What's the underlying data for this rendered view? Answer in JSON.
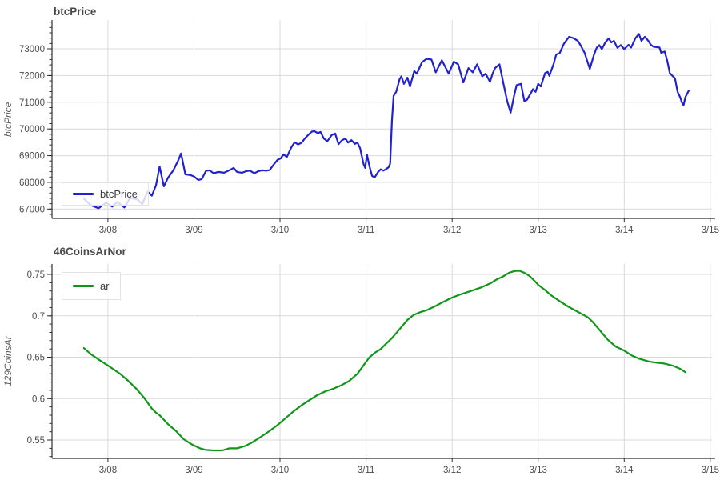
{
  "page": {
    "background": "#ffffff"
  },
  "chart_data": [
    {
      "type": "line",
      "title": "btcPrice",
      "xlabel": "",
      "ylabel": "btcPrice",
      "legend": {
        "label": "btcPrice",
        "position": "bottom-left"
      },
      "color": "#2121cd",
      "grid": true,
      "xlim": [
        7.35,
        15.02
      ],
      "ylim": [
        66650,
        74080
      ],
      "x_tick_values": [
        8,
        9,
        10,
        11,
        12,
        13,
        14,
        15
      ],
      "x_tick_labels": [
        "3/08",
        "3/09",
        "3/10",
        "3/11",
        "3/12",
        "3/13",
        "3/14",
        "3/15"
      ],
      "y_tick_values": [
        67000,
        68000,
        69000,
        70000,
        71000,
        72000,
        73000
      ],
      "y_tick_labels": [
        "67000",
        "68000",
        "69000",
        "70000",
        "71000",
        "72000",
        "73000"
      ],
      "y_minor_step": 200,
      "points": [
        [
          7.72,
          67390
        ],
        [
          7.8,
          67150
        ],
        [
          7.89,
          67030
        ],
        [
          7.98,
          67240
        ],
        [
          8.05,
          67090
        ],
        [
          8.11,
          67270
        ],
        [
          8.19,
          67060
        ],
        [
          8.26,
          67420
        ],
        [
          8.34,
          67360
        ],
        [
          8.4,
          67190
        ],
        [
          8.46,
          67650
        ],
        [
          8.51,
          67500
        ],
        [
          8.56,
          67900
        ],
        [
          8.6,
          68590
        ],
        [
          8.65,
          67850
        ],
        [
          8.7,
          68180
        ],
        [
          8.76,
          68450
        ],
        [
          8.82,
          68840
        ],
        [
          8.85,
          69080
        ],
        [
          8.9,
          68300
        ],
        [
          8.96,
          68270
        ],
        [
          9.0,
          68220
        ],
        [
          9.05,
          68090
        ],
        [
          9.09,
          68120
        ],
        [
          9.14,
          68430
        ],
        [
          9.18,
          68450
        ],
        [
          9.23,
          68340
        ],
        [
          9.28,
          68390
        ],
        [
          9.35,
          68360
        ],
        [
          9.41,
          68450
        ],
        [
          9.46,
          68540
        ],
        [
          9.5,
          68390
        ],
        [
          9.56,
          68360
        ],
        [
          9.61,
          68420
        ],
        [
          9.65,
          68440
        ],
        [
          9.7,
          68340
        ],
        [
          9.75,
          68420
        ],
        [
          9.79,
          68450
        ],
        [
          9.84,
          68440
        ],
        [
          9.88,
          68460
        ],
        [
          9.92,
          68640
        ],
        [
          9.97,
          68840
        ],
        [
          10.01,
          68900
        ],
        [
          10.04,
          69050
        ],
        [
          10.08,
          68950
        ],
        [
          10.13,
          69300
        ],
        [
          10.17,
          69500
        ],
        [
          10.21,
          69420
        ],
        [
          10.25,
          69480
        ],
        [
          10.29,
          69650
        ],
        [
          10.33,
          69780
        ],
        [
          10.37,
          69900
        ],
        [
          10.4,
          69920
        ],
        [
          10.44,
          69840
        ],
        [
          10.47,
          69890
        ],
        [
          10.51,
          69640
        ],
        [
          10.55,
          69540
        ],
        [
          10.6,
          69770
        ],
        [
          10.64,
          69830
        ],
        [
          10.68,
          69430
        ],
        [
          10.72,
          69580
        ],
        [
          10.76,
          69640
        ],
        [
          10.79,
          69490
        ],
        [
          10.83,
          69580
        ],
        [
          10.87,
          69440
        ],
        [
          10.9,
          69490
        ],
        [
          10.93,
          69280
        ],
        [
          10.97,
          68690
        ],
        [
          10.99,
          68540
        ],
        [
          11.01,
          69040
        ],
        [
          11.04,
          68590
        ],
        [
          11.07,
          68240
        ],
        [
          11.1,
          68190
        ],
        [
          11.14,
          68390
        ],
        [
          11.17,
          68490
        ],
        [
          11.2,
          68440
        ],
        [
          11.23,
          68490
        ],
        [
          11.26,
          68560
        ],
        [
          11.28,
          68700
        ],
        [
          11.3,
          70300
        ],
        [
          11.32,
          71240
        ],
        [
          11.35,
          71390
        ],
        [
          11.39,
          71870
        ],
        [
          11.41,
          71970
        ],
        [
          11.44,
          71690
        ],
        [
          11.48,
          71920
        ],
        [
          11.51,
          71590
        ],
        [
          11.56,
          72170
        ],
        [
          11.59,
          72070
        ],
        [
          11.65,
          72500
        ],
        [
          11.7,
          72620
        ],
        [
          11.76,
          72600
        ],
        [
          11.81,
          72120
        ],
        [
          11.88,
          72570
        ],
        [
          11.96,
          72070
        ],
        [
          12.02,
          72520
        ],
        [
          12.07,
          72420
        ],
        [
          12.13,
          71740
        ],
        [
          12.19,
          72280
        ],
        [
          12.24,
          72120
        ],
        [
          12.29,
          72420
        ],
        [
          12.35,
          71970
        ],
        [
          12.39,
          72070
        ],
        [
          12.44,
          71760
        ],
        [
          12.47,
          72070
        ],
        [
          12.5,
          72280
        ],
        [
          12.55,
          72420
        ],
        [
          12.6,
          71640
        ],
        [
          12.64,
          71040
        ],
        [
          12.68,
          70610
        ],
        [
          12.72,
          71240
        ],
        [
          12.75,
          71640
        ],
        [
          12.8,
          71690
        ],
        [
          12.84,
          71040
        ],
        [
          12.87,
          71090
        ],
        [
          12.94,
          71490
        ],
        [
          12.97,
          71390
        ],
        [
          13.0,
          71690
        ],
        [
          13.03,
          71590
        ],
        [
          13.08,
          72090
        ],
        [
          13.11,
          72140
        ],
        [
          13.13,
          71990
        ],
        [
          13.18,
          72440
        ],
        [
          13.21,
          72790
        ],
        [
          13.25,
          72840
        ],
        [
          13.3,
          73200
        ],
        [
          13.36,
          73450
        ],
        [
          13.41,
          73400
        ],
        [
          13.46,
          73300
        ],
        [
          13.49,
          73150
        ],
        [
          13.54,
          72850
        ],
        [
          13.57,
          72550
        ],
        [
          13.6,
          72250
        ],
        [
          13.65,
          72790
        ],
        [
          13.68,
          73040
        ],
        [
          13.71,
          73140
        ],
        [
          13.74,
          72990
        ],
        [
          13.78,
          73240
        ],
        [
          13.82,
          73390
        ],
        [
          13.85,
          73240
        ],
        [
          13.88,
          73300
        ],
        [
          13.92,
          73040
        ],
        [
          13.96,
          73140
        ],
        [
          14.0,
          72990
        ],
        [
          14.05,
          73150
        ],
        [
          14.08,
          73050
        ],
        [
          14.13,
          73400
        ],
        [
          14.17,
          73560
        ],
        [
          14.2,
          73300
        ],
        [
          14.24,
          73450
        ],
        [
          14.28,
          73300
        ],
        [
          14.31,
          73150
        ],
        [
          14.34,
          73080
        ],
        [
          14.41,
          73050
        ],
        [
          14.43,
          72850
        ],
        [
          14.47,
          72900
        ],
        [
          14.5,
          72550
        ],
        [
          14.53,
          72090
        ],
        [
          14.56,
          71990
        ],
        [
          14.59,
          71900
        ],
        [
          14.62,
          71390
        ],
        [
          14.65,
          71190
        ],
        [
          14.67,
          70990
        ],
        [
          14.69,
          70890
        ],
        [
          14.71,
          71190
        ],
        [
          14.75,
          71440
        ]
      ]
    },
    {
      "type": "line",
      "title": "46CoinsArNor",
      "xlabel": "",
      "ylabel": "129CoinsAr",
      "legend": {
        "label": "ar",
        "position": "top-left"
      },
      "color": "#109618",
      "grid": true,
      "xlim": [
        7.35,
        15.02
      ],
      "ylim": [
        0.5278,
        0.7626
      ],
      "x_tick_values": [
        8,
        9,
        10,
        11,
        12,
        13,
        14,
        15
      ],
      "x_tick_labels": [
        "3/08",
        "3/09",
        "3/10",
        "3/11",
        "3/12",
        "3/13",
        "3/14",
        "3/15"
      ],
      "y_tick_values": [
        0.55,
        0.6,
        0.65,
        0.7,
        0.75
      ],
      "y_tick_labels": [
        "0.55",
        "0.6",
        "0.65",
        "0.7",
        "0.75"
      ],
      "y_minor_step": 0.01,
      "points": [
        [
          7.72,
          0.661
        ],
        [
          7.81,
          0.653
        ],
        [
          7.91,
          0.646
        ],
        [
          8.0,
          0.64
        ],
        [
          8.14,
          0.63
        ],
        [
          8.23,
          0.622
        ],
        [
          8.33,
          0.612
        ],
        [
          8.42,
          0.601
        ],
        [
          8.51,
          0.588
        ],
        [
          8.56,
          0.583
        ],
        [
          8.6,
          0.58
        ],
        [
          8.7,
          0.569
        ],
        [
          8.79,
          0.561
        ],
        [
          8.88,
          0.551
        ],
        [
          8.97,
          0.545
        ],
        [
          9.07,
          0.54
        ],
        [
          9.14,
          0.538
        ],
        [
          9.23,
          0.5375
        ],
        [
          9.33,
          0.5375
        ],
        [
          9.41,
          0.54
        ],
        [
          9.5,
          0.54
        ],
        [
          9.6,
          0.543
        ],
        [
          9.69,
          0.548
        ],
        [
          9.78,
          0.554
        ],
        [
          9.88,
          0.561
        ],
        [
          9.97,
          0.568
        ],
        [
          10.06,
          0.576
        ],
        [
          10.15,
          0.584
        ],
        [
          10.25,
          0.592
        ],
        [
          10.34,
          0.598
        ],
        [
          10.43,
          0.604
        ],
        [
          10.53,
          0.609
        ],
        [
          10.62,
          0.612
        ],
        [
          10.71,
          0.616
        ],
        [
          10.8,
          0.621
        ],
        [
          10.9,
          0.63
        ],
        [
          10.99,
          0.643
        ],
        [
          11.04,
          0.65
        ],
        [
          11.11,
          0.656
        ],
        [
          11.16,
          0.659
        ],
        [
          11.2,
          0.663
        ],
        [
          11.3,
          0.673
        ],
        [
          11.39,
          0.684
        ],
        [
          11.48,
          0.695
        ],
        [
          11.55,
          0.701
        ],
        [
          11.62,
          0.704
        ],
        [
          11.71,
          0.707
        ],
        [
          11.81,
          0.712
        ],
        [
          11.9,
          0.717
        ],
        [
          12.0,
          0.722
        ],
        [
          12.1,
          0.726
        ],
        [
          12.22,
          0.73
        ],
        [
          12.33,
          0.734
        ],
        [
          12.44,
          0.739
        ],
        [
          12.52,
          0.744
        ],
        [
          12.6,
          0.748
        ],
        [
          12.66,
          0.752
        ],
        [
          12.72,
          0.754
        ],
        [
          12.78,
          0.7545
        ],
        [
          12.84,
          0.752
        ],
        [
          12.9,
          0.748
        ],
        [
          12.97,
          0.741
        ],
        [
          13.0,
          0.7375
        ],
        [
          13.07,
          0.732
        ],
        [
          13.16,
          0.724
        ],
        [
          13.26,
          0.717
        ],
        [
          13.35,
          0.711
        ],
        [
          13.44,
          0.706
        ],
        [
          13.53,
          0.701
        ],
        [
          13.58,
          0.698
        ],
        [
          13.63,
          0.693
        ],
        [
          13.72,
          0.682
        ],
        [
          13.81,
          0.671
        ],
        [
          13.9,
          0.663
        ],
        [
          14.0,
          0.658
        ],
        [
          14.09,
          0.652
        ],
        [
          14.18,
          0.648
        ],
        [
          14.28,
          0.645
        ],
        [
          14.37,
          0.6435
        ],
        [
          14.46,
          0.6425
        ],
        [
          14.56,
          0.64
        ],
        [
          14.65,
          0.636
        ],
        [
          14.71,
          0.632
        ]
      ]
    }
  ],
  "style": {
    "grid_color": "#d9d9d9",
    "axis_color": "#2e2e2e",
    "tick_label_color": "#4d4d4d"
  }
}
